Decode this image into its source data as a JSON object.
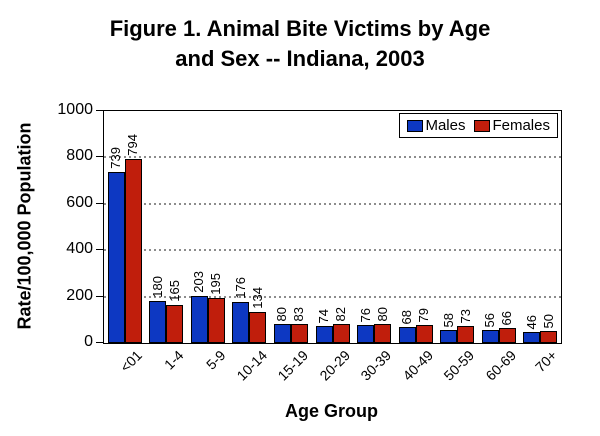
{
  "chart_data": {
    "type": "bar",
    "title": "Figure 1. Animal Bite Victims by Age and Sex -- Indiana, 2003",
    "title_line1": "Figure 1. Animal Bite Victims by Age",
    "title_line2": "and Sex -- Indiana, 2003",
    "xlabel": "Age Group",
    "ylabel": "Rate/100,000 Population",
    "ylim": [
      0,
      1000
    ],
    "yticks": [
      0,
      200,
      400,
      600,
      800,
      1000
    ],
    "grid": "horizontal dotted gridlines every 200",
    "legend_position": "top-right inside plot area",
    "value_labels_shown": true,
    "value_label_orientation": "vertical",
    "categories": [
      "<01",
      "1-4",
      "5-9",
      "10-14",
      "15-19",
      "20-29",
      "30-39",
      "40-49",
      "50-59",
      "60-69",
      "70+"
    ],
    "series": [
      {
        "name": "Males",
        "color": "#0D38C2",
        "values": [
          739,
          180,
          203,
          176,
          80,
          74,
          76,
          68,
          58,
          56,
          46
        ]
      },
      {
        "name": "Females",
        "color": "#C01E0C",
        "values": [
          794,
          165,
          195,
          134,
          83,
          82,
          80,
          79,
          73,
          66,
          50
        ]
      }
    ]
  },
  "colors": {
    "background": "#FFFFFF",
    "bar_border": "#000000",
    "axis": "#000000",
    "gridline": "#8C8C8C",
    "text": "#000000"
  }
}
